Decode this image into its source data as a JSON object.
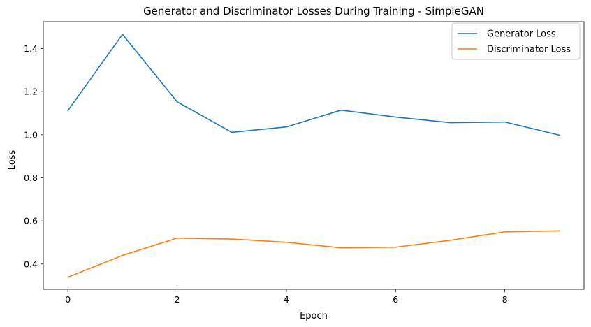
{
  "chart_data": {
    "type": "line",
    "title": "Generator and Discriminator Losses During Training - SimpleGAN",
    "xlabel": "Epoch",
    "ylabel": "Loss",
    "x": [
      0,
      1,
      2,
      3,
      4,
      5,
      6,
      7,
      8,
      9
    ],
    "xlim": [
      -0.45,
      9.45
    ],
    "ylim": [
      0.2825,
      1.525
    ],
    "xticks": [
      0,
      2,
      4,
      6,
      8
    ],
    "xtick_labels": [
      "0",
      "2",
      "4",
      "6",
      "8"
    ],
    "yticks": [
      0.4,
      0.6,
      0.8,
      1.0,
      1.2,
      1.4
    ],
    "ytick_labels": [
      "0.4",
      "0.6",
      "0.8",
      "1.0",
      "1.2",
      "1.4"
    ],
    "grid": false,
    "legend_position": "top-right",
    "series": [
      {
        "name": "Generator Loss",
        "color": "#1f77b4",
        "values": [
          1.112,
          1.466,
          1.153,
          1.011,
          1.036,
          1.114,
          1.082,
          1.056,
          1.059,
          0.998
        ]
      },
      {
        "name": "Discriminator Loss",
        "color": "#ff7f0e",
        "values": [
          0.339,
          0.44,
          0.52,
          0.516,
          0.501,
          0.475,
          0.478,
          0.51,
          0.549,
          0.554
        ]
      }
    ]
  }
}
